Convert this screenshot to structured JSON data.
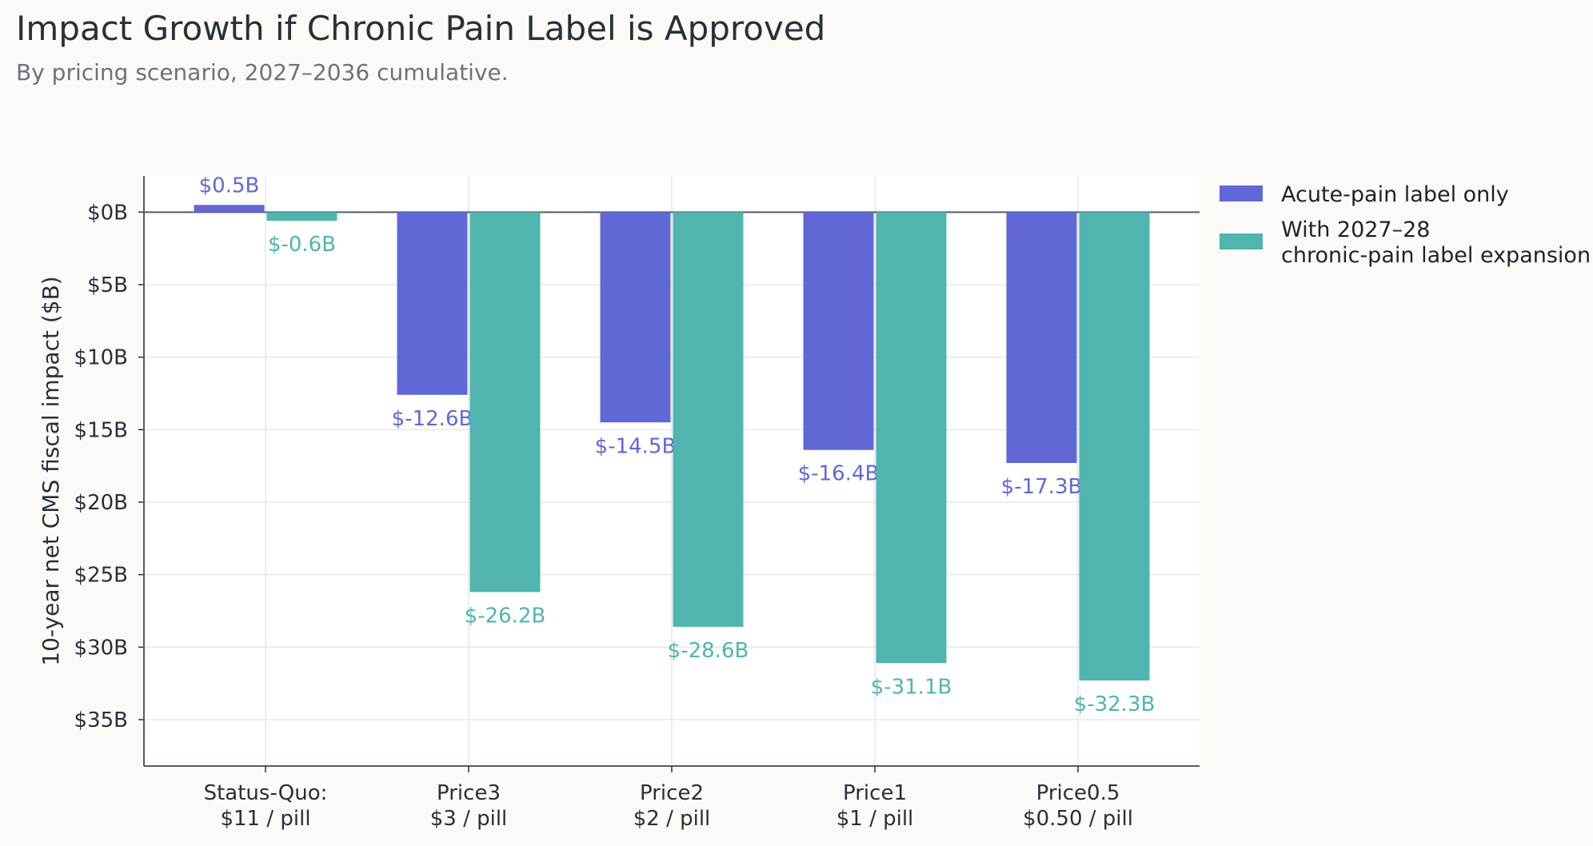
{
  "chart_data": {
    "type": "bar",
    "title": "Impact Growth if Chronic Pain Label is Approved",
    "subtitle": "By pricing scenario, 2027–2036 cumulative.",
    "ylabel": "10-year net CMS fiscal impact ($B)",
    "xlabel": "",
    "categories": [
      [
        "Status-Quo:",
        "$11 / pill"
      ],
      [
        "Price3",
        "$3 / pill"
      ],
      [
        "Price2",
        "$2 / pill"
      ],
      [
        "Price1",
        "$1 / pill"
      ],
      [
        "Price0.5",
        "$0.50 / pill"
      ]
    ],
    "series": [
      {
        "name": "Acute-pain label only",
        "color": "#6068d6",
        "values": [
          0.5,
          -12.6,
          -14.5,
          -16.4,
          -17.3
        ],
        "labels": [
          "$0.5B",
          "$-12.6B",
          "$-14.5B",
          "$-16.4B",
          "$-17.3B"
        ]
      },
      {
        "name": [
          "With 2027–28",
          "chronic-pain label expansion"
        ],
        "color": "#4fb5ae",
        "values": [
          -0.6,
          -26.2,
          -28.6,
          -31.1,
          -32.3
        ],
        "labels": [
          "$-0.6B",
          "$-26.2B",
          "$-28.6B",
          "$-31.1B",
          "$-32.3B"
        ]
      }
    ],
    "yticks": [
      0,
      -5,
      -10,
      -15,
      -20,
      -25,
      -30,
      -35
    ],
    "ytick_labels": [
      "$0B",
      "$5B",
      "$10B",
      "$15B",
      "$20B",
      "$25B",
      "$30B",
      "$35B"
    ],
    "ylim": [
      -38.2,
      2.5
    ],
    "grid": true,
    "legend": "right"
  }
}
